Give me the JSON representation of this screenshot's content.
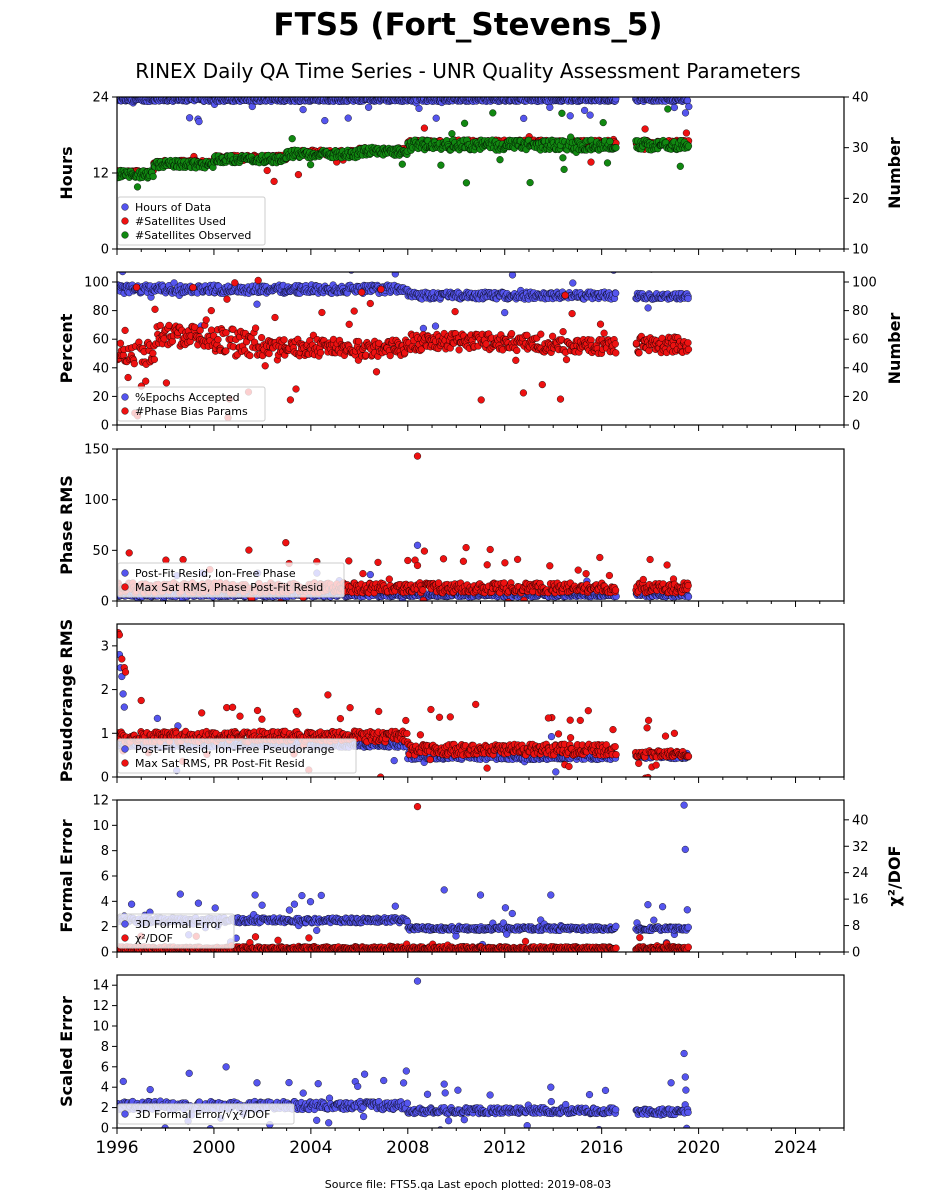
{
  "title": "FTS5 (Fort_Stevens_5)",
  "subtitle": "RINEX Daily QA Time Series - UNR Quality Assessment Parameters",
  "footer": "Source file: FTS5.qa Last epoch plotted: 2019-08-03",
  "colors": {
    "blue": "#5555ee",
    "red": "#ee1111",
    "green": "#118811",
    "edge": "#000000"
  },
  "chart_data": [
    {
      "type": "scatter",
      "ylabel": "Hours",
      "ylabel_right": "Number",
      "ylim": [
        0,
        24
      ],
      "yticks": [
        0,
        12,
        24
      ],
      "ylim_right": [
        10,
        40
      ],
      "yticks_right": [
        10,
        20,
        30,
        40
      ],
      "legend": [
        "Hours of Data",
        "#Satellites Used",
        "#Satellites Observed"
      ],
      "series": [
        {
          "name": "Hours of Data",
          "color": "blue",
          "axis": "left",
          "segments": [
            [
              1996.0,
              2016.6,
              23.3,
              23.8,
              1.0,
              0.06
            ],
            [
              2017.4,
              2019.6,
              23.3,
              23.8,
              1.0,
              0.06
            ]
          ]
        },
        {
          "name": "#Satellites Used",
          "color": "red",
          "axis": "right",
          "segments": [
            [
              1996.0,
              1997.5,
              24.5,
              25.5,
              0.8,
              0.02
            ],
            [
              1997.5,
              2000.0,
              26.5,
              27.5,
              0.8,
              0.02
            ],
            [
              2000.0,
              2003.0,
              27.5,
              28.5,
              0.8,
              0.02
            ],
            [
              2003.0,
              2006.0,
              28.5,
              29.5,
              0.8,
              0.02
            ],
            [
              2006.0,
              2008.0,
              29.0,
              30.0,
              0.8,
              0.03
            ],
            [
              2008.0,
              2016.6,
              30.5,
              31.5,
              0.8,
              0.02
            ],
            [
              2017.4,
              2019.6,
              30.5,
              31.5,
              0.8,
              0.03
            ]
          ]
        },
        {
          "name": "#Satellites Observed",
          "color": "green",
          "axis": "right",
          "segments": [
            [
              1996.0,
              1997.5,
              24.0,
              25.5,
              0.8,
              0.02
            ],
            [
              1997.5,
              2000.0,
              26.0,
              27.5,
              0.8,
              0.02
            ],
            [
              2000.0,
              2003.0,
              27.0,
              28.5,
              0.8,
              0.02
            ],
            [
              2003.0,
              2006.0,
              28.0,
              29.5,
              0.8,
              0.02
            ],
            [
              2006.0,
              2008.0,
              28.5,
              30.0,
              0.8,
              0.03
            ],
            [
              2008.0,
              2016.6,
              29.5,
              31.5,
              0.8,
              0.03
            ],
            [
              2017.4,
              2019.6,
              29.5,
              31.5,
              0.8,
              0.04
            ]
          ]
        }
      ]
    },
    {
      "type": "scatter",
      "ylabel": "Percent",
      "ylabel_right": "Number",
      "ylim": [
        0,
        107
      ],
      "yticks": [
        0,
        20,
        40,
        60,
        80,
        100
      ],
      "ylim_right": [
        0,
        107
      ],
      "yticks_right": [
        0,
        20,
        40,
        60,
        80,
        100
      ],
      "legend": [
        "%Epochs Accepted",
        "#Phase Bias Params"
      ],
      "series": [
        {
          "name": "%Epochs Accepted",
          "color": "blue",
          "axis": "left",
          "segments": [
            [
              1996.0,
              2008.0,
              92.0,
              98.0,
              1.0,
              0.03
            ],
            [
              2008.0,
              2016.6,
              88.0,
              93.0,
              1.0,
              0.03
            ],
            [
              2017.4,
              2019.6,
              88.0,
              92.0,
              1.0,
              0.03
            ]
          ]
        },
        {
          "name": "#Phase Bias Params",
          "color": "red",
          "axis": "right",
          "segments": [
            [
              1996.0,
              1997.6,
              42.0,
              58.0,
              1.0,
              0.1
            ],
            [
              1997.6,
              2000.0,
              55.0,
              70.0,
              1.0,
              0.1
            ],
            [
              2000.0,
              2002.0,
              48.0,
              68.0,
              1.0,
              0.15
            ],
            [
              2002.0,
              2008.0,
              48.0,
              60.0,
              1.0,
              0.08
            ],
            [
              2008.0,
              2013.5,
              52.0,
              64.0,
              1.0,
              0.08
            ],
            [
              2013.5,
              2016.6,
              50.0,
              60.0,
              1.0,
              0.08
            ],
            [
              2017.4,
              2019.6,
              50.0,
              62.0,
              1.0,
              0.08
            ]
          ]
        }
      ]
    },
    {
      "type": "scatter",
      "ylabel": "Phase RMS",
      "ylim": [
        0,
        150
      ],
      "yticks": [
        0,
        50,
        100,
        150
      ],
      "legend": [
        "Post-Fit Resid, Ion-Free Phase",
        "Max Sat RMS, Phase Post-Fit Resid"
      ],
      "series": [
        {
          "name": "Post-Fit Resid, Ion-Free Phase",
          "color": "blue",
          "axis": "left",
          "points": [
            [
              2008.4,
              55
            ]
          ],
          "segments": [
            [
              1996.0,
              2016.6,
              4.0,
              8.0,
              1.0,
              0.03
            ],
            [
              2017.4,
              2019.6,
              4.0,
              8.0,
              1.0,
              0.03
            ]
          ]
        },
        {
          "name": "Max Sat RMS, Phase Post-Fit Resid",
          "color": "red",
          "axis": "left",
          "points": [
            [
              2008.4,
              143
            ],
            [
              2003.1,
              37
            ],
            [
              2018.0,
              41
            ],
            [
              2008.0,
              40
            ]
          ],
          "segments": [
            [
              1996.0,
              2016.6,
              8.0,
              18.0,
              1.0,
              0.1
            ],
            [
              2017.4,
              2019.6,
              8.0,
              18.0,
              1.0,
              0.1
            ]
          ]
        }
      ]
    },
    {
      "type": "scatter",
      "ylabel": "Pseudorange RMS",
      "ylim": [
        0,
        3.5
      ],
      "yticks": [
        0,
        1,
        2,
        3
      ],
      "legend": [
        "Post-Fit Resid, Ion-Free Pseudorange",
        "Max Sat RMS, PR Post-Fit Resid"
      ],
      "series": [
        {
          "name": "Post-Fit Resid, Ion-Free Pseudorange",
          "color": "blue",
          "axis": "left",
          "points": [
            [
              1996.1,
              2.8
            ],
            [
              1996.15,
              2.5
            ],
            [
              1996.2,
              2.3
            ],
            [
              1996.25,
              1.9
            ],
            [
              1996.3,
              1.6
            ]
          ],
          "segments": [
            [
              1996.0,
              2008.0,
              0.68,
              0.8,
              1.0,
              0.02
            ],
            [
              2008.0,
              2016.6,
              0.4,
              0.55,
              1.0,
              0.02
            ],
            [
              2017.4,
              2019.6,
              0.42,
              0.55,
              1.0,
              0.02
            ]
          ]
        },
        {
          "name": "Max Sat RMS, PR Post-Fit Resid",
          "color": "red",
          "axis": "left",
          "points": [
            [
              1996.05,
              3.3
            ],
            [
              1996.1,
              3.25
            ],
            [
              1996.2,
              2.7
            ],
            [
              1996.3,
              2.5
            ],
            [
              1996.35,
              2.4
            ],
            [
              1997.0,
              1.75
            ],
            [
              2003.4,
              1.5
            ],
            [
              2006.8,
              1.5
            ],
            [
              2013.8,
              1.35
            ],
            [
              2014.7,
              1.3
            ],
            [
              2019.0,
              1.0
            ]
          ],
          "segments": [
            [
              1996.0,
              2008.0,
              0.8,
              1.05,
              1.0,
              0.08
            ],
            [
              2008.0,
              2016.6,
              0.5,
              0.75,
              1.0,
              0.08
            ],
            [
              2017.4,
              2019.6,
              0.45,
              0.6,
              1.0,
              0.05
            ]
          ]
        }
      ]
    },
    {
      "type": "scatter",
      "ylabel": "Formal Error",
      "ylabel_right": "χ²/DOF",
      "ylim": [
        0,
        12
      ],
      "yticks": [
        0,
        2,
        4,
        6,
        8,
        10,
        12
      ],
      "ylim_right": [
        0,
        46
      ],
      "yticks_right": [
        0,
        8,
        16,
        24,
        32,
        40
      ],
      "legend": [
        "3D Formal Error",
        "χ²/DOF"
      ],
      "series": [
        {
          "name": "3D Formal Error",
          "color": "blue",
          "axis": "left",
          "points": [
            [
              2019.4,
              11.6
            ],
            [
              2019.45,
              8.1
            ],
            [
              2009.5,
              4.9
            ],
            [
              2011.0,
              4.5
            ],
            [
              2013.9,
              4.5
            ],
            [
              2001.7,
              4.5
            ]
          ],
          "segments": [
            [
              1996.0,
              2008.0,
              2.3,
              2.7,
              1.0,
              0.08
            ],
            [
              2008.0,
              2016.6,
              1.7,
              2.0,
              1.0,
              0.08
            ],
            [
              2017.4,
              2019.6,
              1.7,
              2.0,
              1.0,
              0.08
            ]
          ]
        },
        {
          "name": "χ²/DOF",
          "color": "red",
          "axis": "right",
          "points": [
            [
              2008.4,
              44
            ]
          ],
          "segments": [
            [
              1996.0,
              2016.6,
              0.6,
              1.6,
              1.0,
              0.03
            ],
            [
              2017.4,
              2019.6,
              0.6,
              1.6,
              1.0,
              0.03
            ]
          ]
        }
      ]
    },
    {
      "type": "scatter",
      "ylabel": "Scaled Error",
      "ylim": [
        0,
        15
      ],
      "yticks": [
        0,
        2,
        4,
        6,
        8,
        10,
        12,
        14
      ],
      "legend": [
        "3D Formal Error/√χ²/DOF"
      ],
      "series": [
        {
          "name": "3D Formal Error/√χ²/DOF",
          "color": "blue",
          "axis": "left",
          "points": [
            [
              2008.4,
              14.4
            ],
            [
              2019.4,
              7.3
            ],
            [
              2019.45,
              5.0
            ],
            [
              2009.5,
              4.3
            ],
            [
              2013.9,
              4.0
            ]
          ],
          "segments": [
            [
              1996.0,
              2008.0,
              1.8,
              2.6,
              1.0,
              0.1
            ],
            [
              2008.0,
              2016.6,
              1.4,
              2.0,
              1.0,
              0.08
            ],
            [
              2017.4,
              2019.6,
              1.3,
              1.9,
              1.0,
              0.08
            ]
          ]
        }
      ]
    }
  ],
  "x_axis": {
    "xlim": [
      1996,
      2026
    ],
    "ticks": [
      1996,
      2000,
      2004,
      2008,
      2012,
      2016,
      2020,
      2024
    ]
  }
}
